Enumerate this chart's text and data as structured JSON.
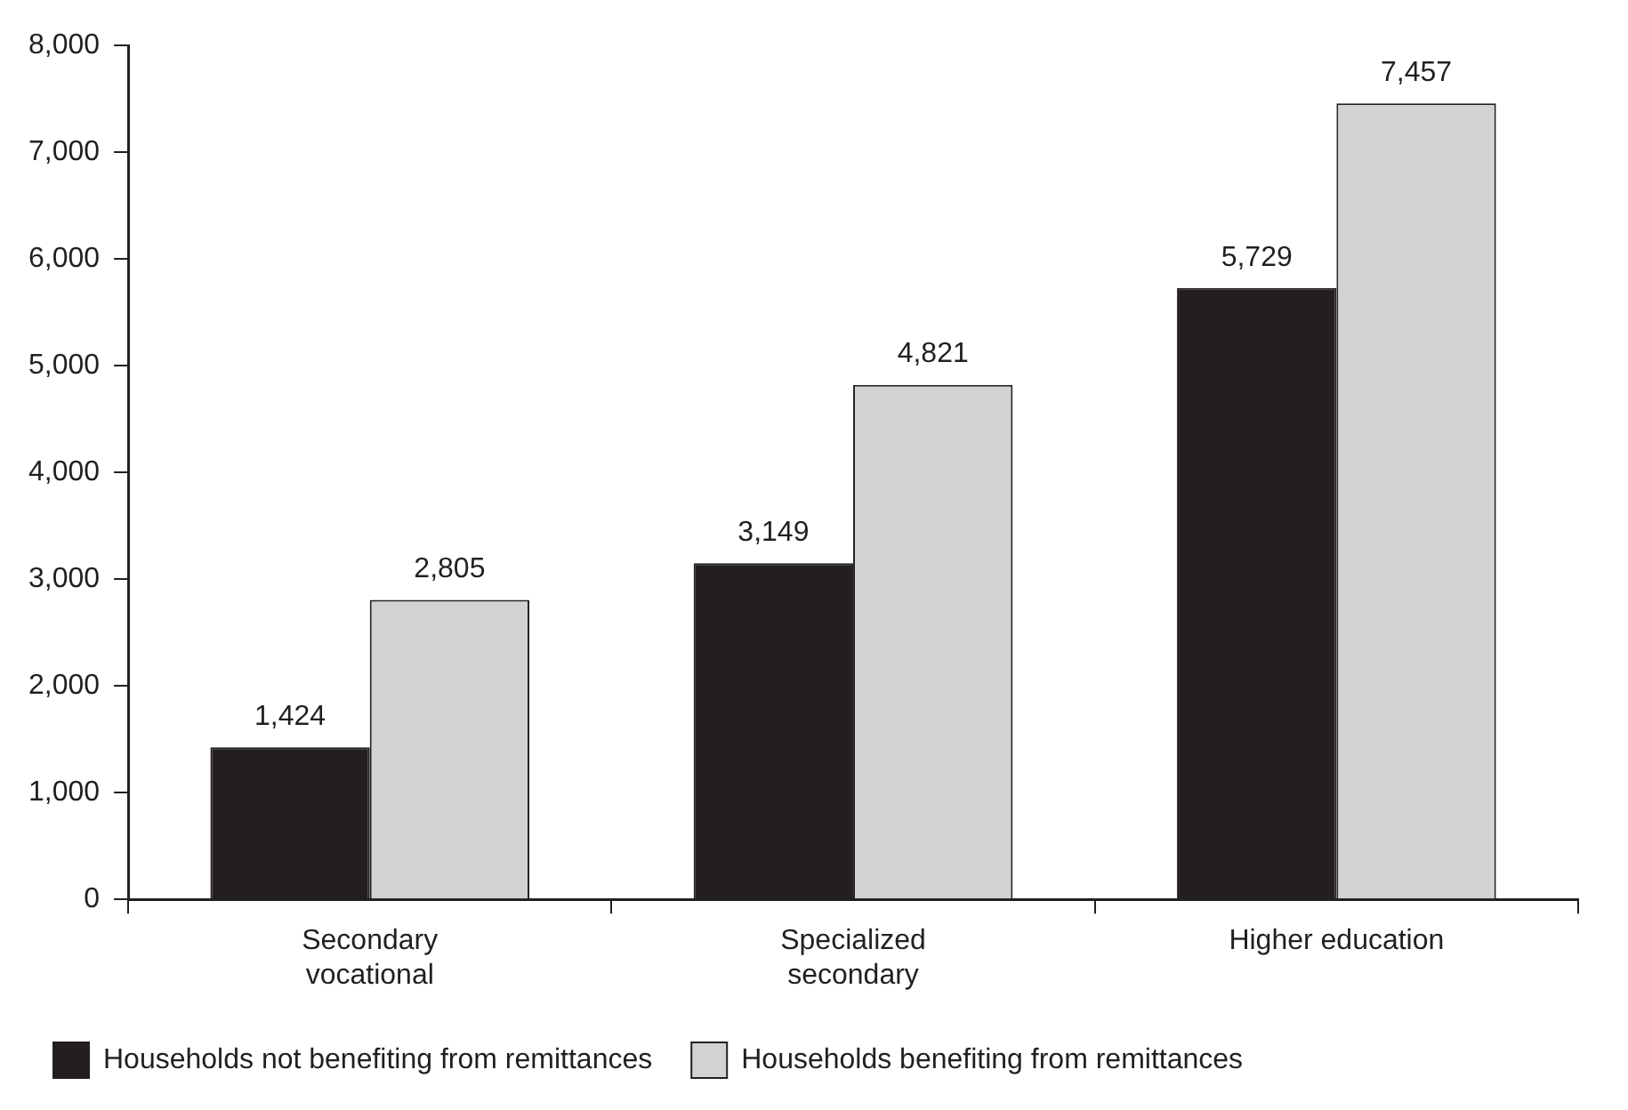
{
  "chart_data": {
    "type": "bar",
    "categories": [
      "Secondary vocational",
      "Specialized secondary",
      "Higher education"
    ],
    "series": [
      {
        "name": "Households not benefiting from remittances",
        "color": "#231f20",
        "values": [
          1424,
          3149,
          5729
        ],
        "value_labels": [
          "1,424",
          "3,149",
          "5,729"
        ]
      },
      {
        "name": "Households benefiting from remittances",
        "color": "#d1d2d4",
        "values": [
          2805,
          4821,
          7457
        ],
        "value_labels": [
          "2,805",
          "4,821",
          "7,457"
        ]
      }
    ],
    "ylim": [
      0,
      8000
    ],
    "yticks": [
      0,
      {
        "value": 1000,
        "label": "1,000"
      },
      {
        "value": 2000,
        "label": "2,000"
      },
      {
        "value": 3000,
        "label": "3,000"
      },
      {
        "value": 4000,
        "label": "4,000"
      },
      {
        "value": 5000,
        "label": "5,000"
      },
      {
        "value": 6000,
        "label": "6,000"
      },
      {
        "value": 7000,
        "label": "7,000"
      },
      {
        "value": 8000,
        "label": "8,000"
      }
    ],
    "grid": false,
    "legend": "bottom"
  }
}
